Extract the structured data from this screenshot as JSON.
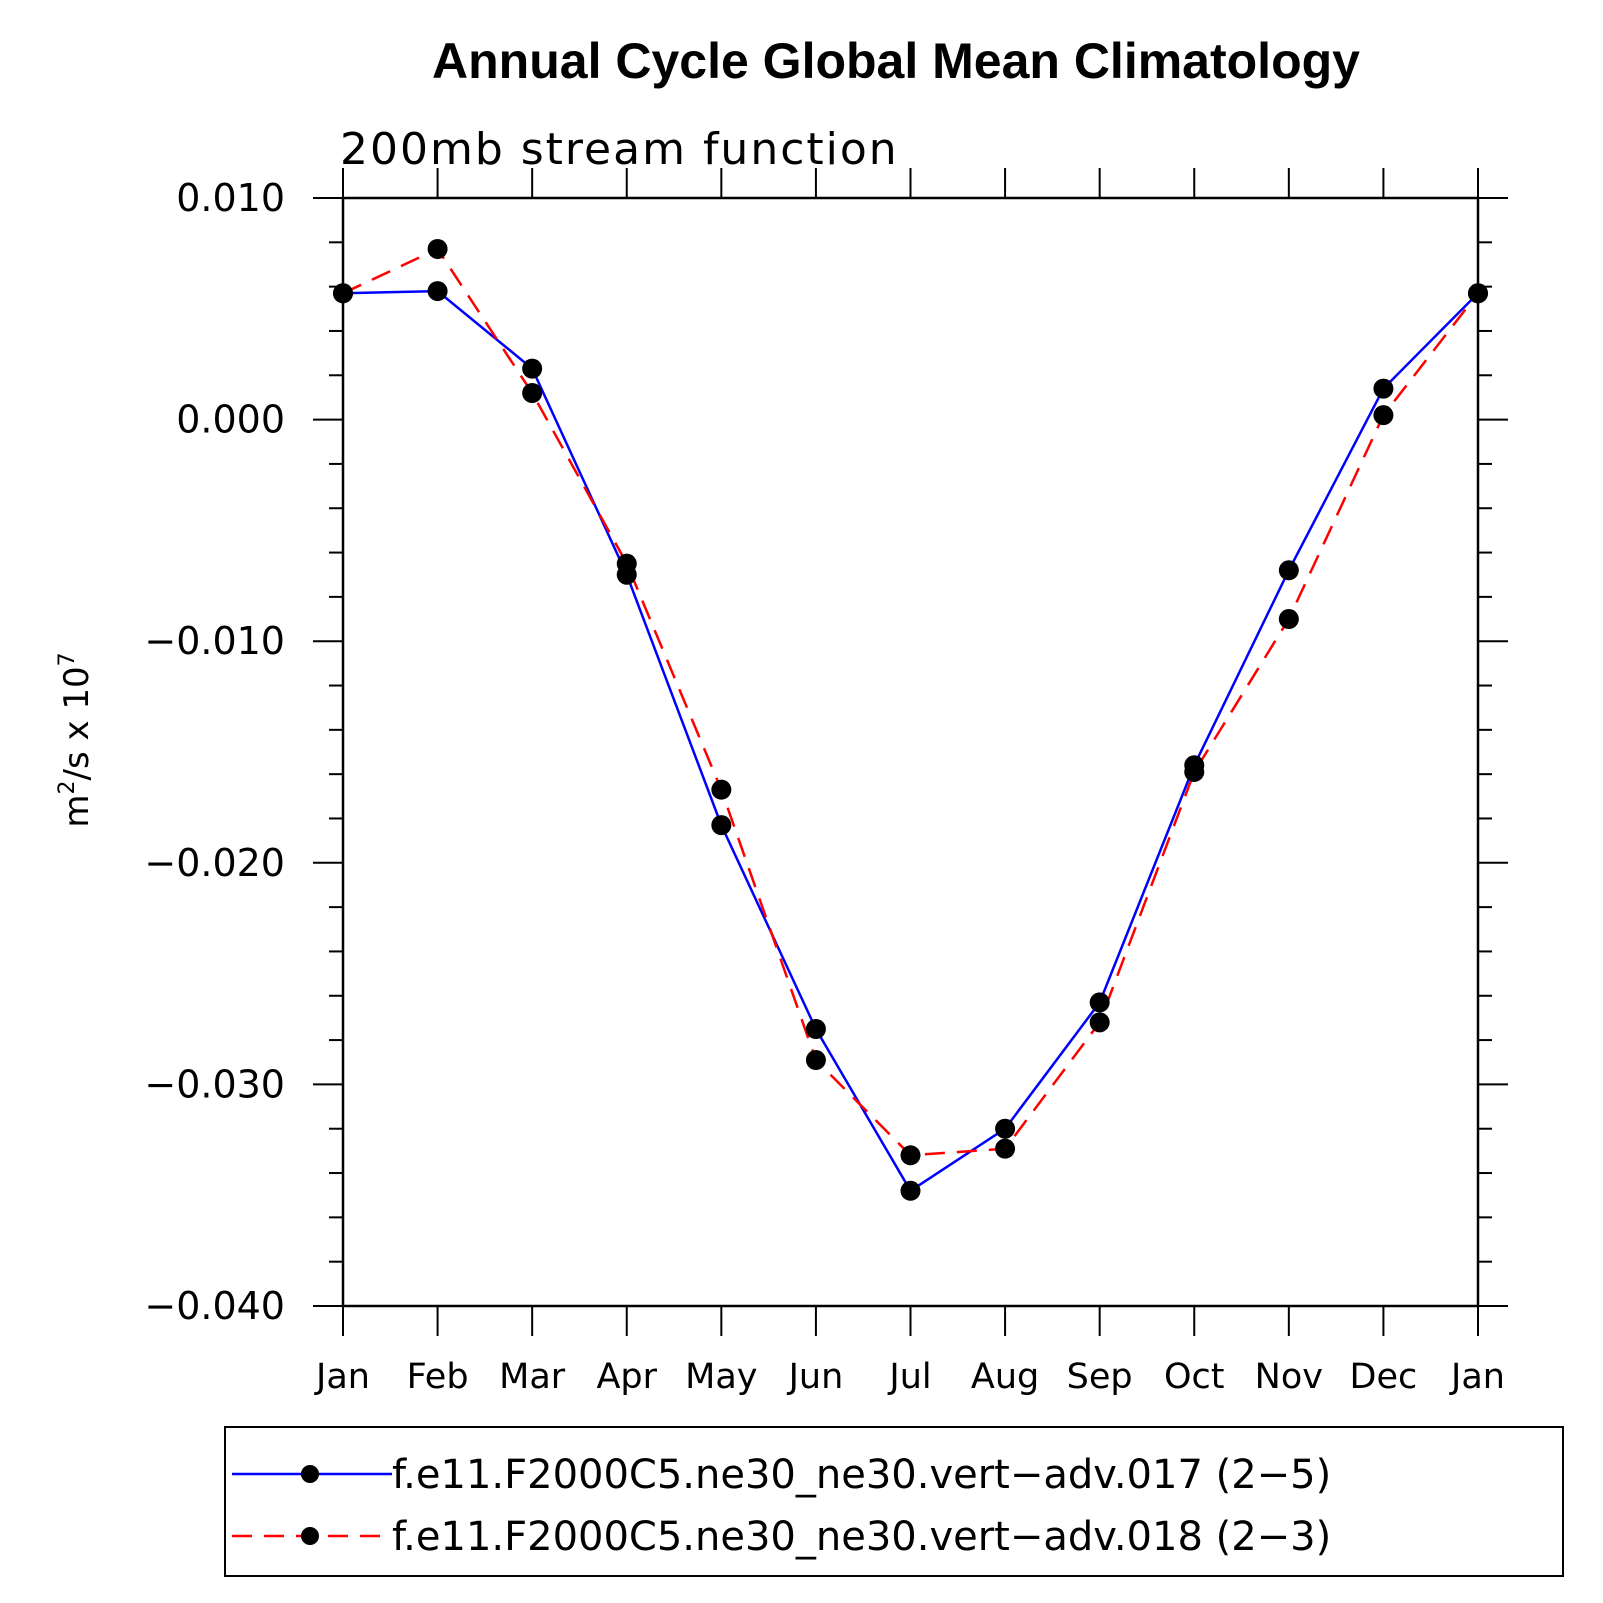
{
  "chart_data": {
    "type": "line",
    "title": "Annual Cycle Global Mean Climatology",
    "subtitle": "200mb stream function",
    "ylabel": "m²/s x 10⁷",
    "ylabel_base": "m",
    "ylabel_sup1": "2",
    "ylabel_mid": "/s x 10",
    "ylabel_sup2": "7",
    "xlabel": "",
    "ylim": [
      -0.04,
      0.01
    ],
    "yticks": [
      0.01,
      0.0,
      -0.01,
      -0.02,
      -0.03,
      -0.04
    ],
    "ytick_labels": [
      "0.010",
      "0.000",
      "−0.010",
      "−0.020",
      "−0.030",
      "−0.040"
    ],
    "categories": [
      "Jan",
      "Feb",
      "Mar",
      "Apr",
      "May",
      "Jun",
      "Jul",
      "Aug",
      "Sep",
      "Oct",
      "Nov",
      "Dec",
      "Jan"
    ],
    "series": [
      {
        "name": "f.e11.F2000C5.ne30_ne30.vert−adv.017 (2−5)",
        "color": "#0000ff",
        "dash": "solid",
        "values": [
          0.0057,
          0.0058,
          0.0023,
          -0.007,
          -0.0183,
          -0.0275,
          -0.0348,
          -0.032,
          -0.0263,
          -0.0156,
          -0.0068,
          0.0014,
          0.0057
        ]
      },
      {
        "name": "f.e11.F2000C5.ne30_ne30.vert−adv.018 (2−3)",
        "color": "#ff0000",
        "dash": "dashed",
        "values": [
          0.0057,
          0.0077,
          0.0012,
          -0.0065,
          -0.0167,
          -0.0289,
          -0.0332,
          -0.0329,
          -0.0272,
          -0.0159,
          -0.009,
          0.0002,
          0.0057
        ]
      }
    ],
    "legend_position": "bottom"
  }
}
